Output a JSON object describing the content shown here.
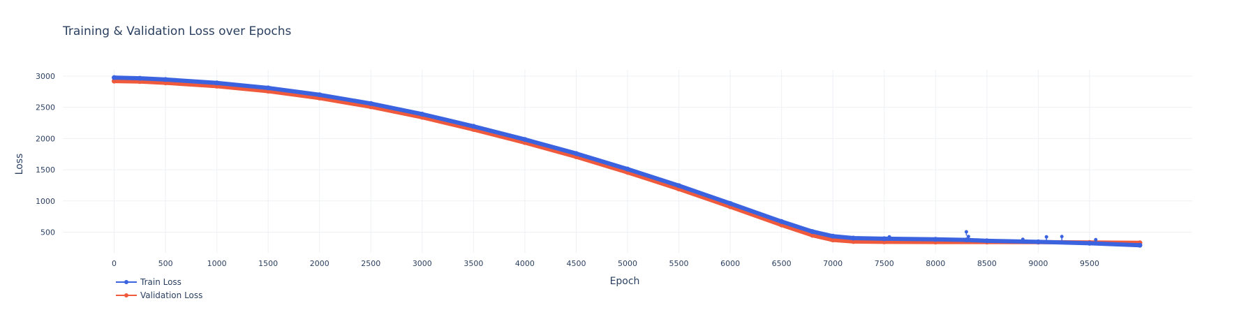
{
  "chart_data": {
    "type": "line",
    "title": "Training & Validation Loss over Epochs",
    "xlabel": "Epoch",
    "ylabel": "Loss",
    "xlim": [
      -500,
      10500
    ],
    "ylim": [
      170,
      3100
    ],
    "x_ticks": [
      0,
      500,
      1000,
      1500,
      2000,
      2500,
      3000,
      3500,
      4000,
      4500,
      5000,
      5500,
      6000,
      6500,
      7000,
      7500,
      8000,
      8500,
      9000,
      9500
    ],
    "y_ticks": [
      500,
      1000,
      1500,
      2000,
      2500,
      3000
    ],
    "grid": true,
    "legend_position": "bottom-left",
    "series": [
      {
        "name": "Train Loss",
        "color": "#3b63e0",
        "points": [
          [
            0,
            2975
          ],
          [
            250,
            2965
          ],
          [
            500,
            2945
          ],
          [
            1000,
            2890
          ],
          [
            1500,
            2810
          ],
          [
            2000,
            2700
          ],
          [
            2500,
            2560
          ],
          [
            3000,
            2390
          ],
          [
            3500,
            2195
          ],
          [
            4000,
            1985
          ],
          [
            4500,
            1760
          ],
          [
            5000,
            1510
          ],
          [
            5500,
            1245
          ],
          [
            6000,
            960
          ],
          [
            6500,
            670
          ],
          [
            6800,
            510
          ],
          [
            7000,
            435
          ],
          [
            7200,
            405
          ],
          [
            7500,
            395
          ],
          [
            8000,
            385
          ],
          [
            8300,
            375
          ],
          [
            8500,
            362
          ],
          [
            9000,
            345
          ],
          [
            9500,
            322
          ],
          [
            9990,
            290
          ]
        ],
        "spikes": [
          [
            7550,
            425
          ],
          [
            8300,
            505
          ],
          [
            8320,
            430
          ],
          [
            8850,
            385
          ],
          [
            9080,
            425
          ],
          [
            9230,
            430
          ],
          [
            9560,
            380
          ]
        ]
      },
      {
        "name": "Validation Loss",
        "color": "#ef5a3c",
        "points": [
          [
            0,
            2920
          ],
          [
            250,
            2912
          ],
          [
            500,
            2892
          ],
          [
            1000,
            2838
          ],
          [
            1500,
            2758
          ],
          [
            2000,
            2648
          ],
          [
            2500,
            2508
          ],
          [
            3000,
            2340
          ],
          [
            3500,
            2145
          ],
          [
            4000,
            1935
          ],
          [
            4500,
            1708
          ],
          [
            5000,
            1458
          ],
          [
            5500,
            1192
          ],
          [
            6000,
            908
          ],
          [
            6500,
            615
          ],
          [
            6800,
            450
          ],
          [
            7000,
            375
          ],
          [
            7200,
            350
          ],
          [
            7500,
            345
          ],
          [
            8000,
            342
          ],
          [
            8500,
            342
          ],
          [
            9000,
            340
          ],
          [
            9500,
            335
          ],
          [
            9990,
            330
          ]
        ]
      }
    ]
  }
}
